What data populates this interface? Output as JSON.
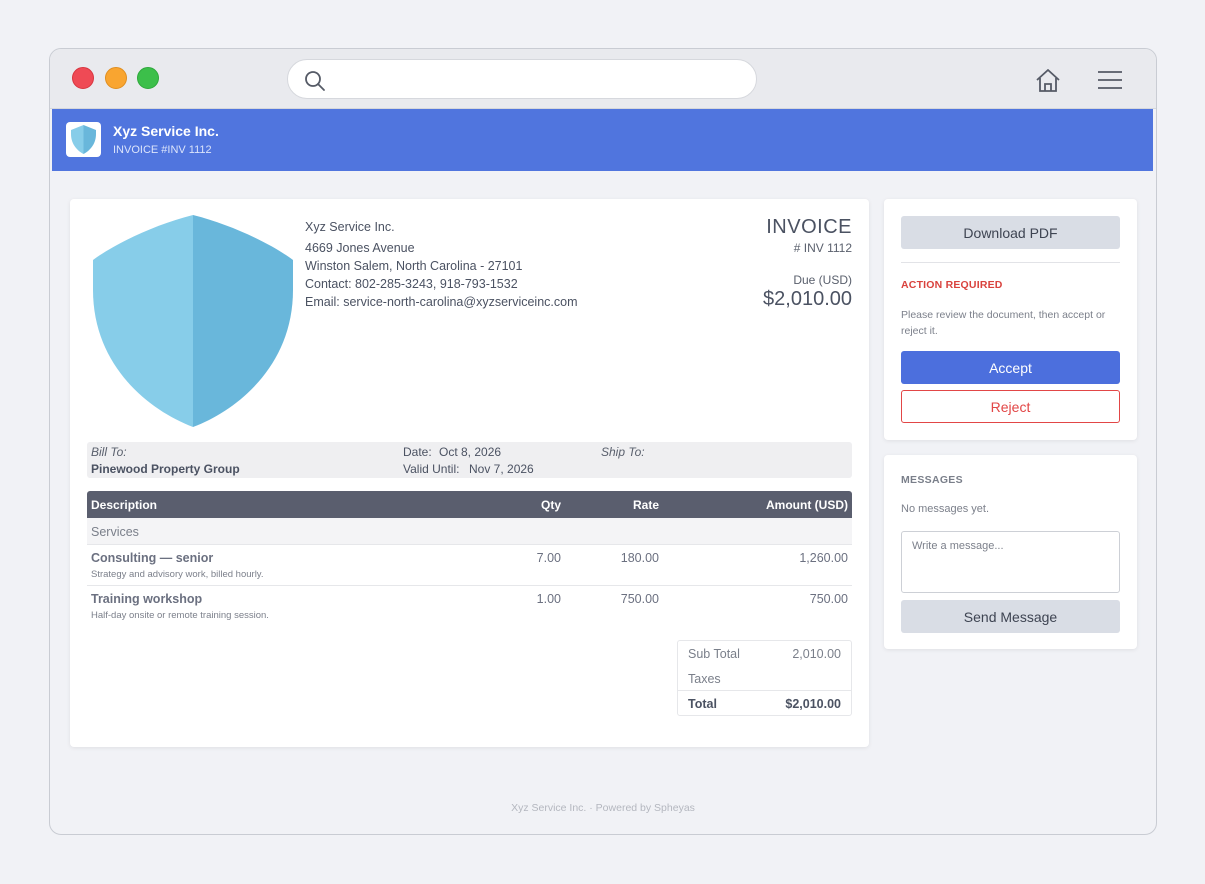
{
  "browser": {
    "url": "",
    "colors": {
      "close": "#ef4a55",
      "minimize": "#f9a530",
      "maximize": "#3cbf4a"
    }
  },
  "brand": {
    "name": "Xyz Service Inc.",
    "subtitle": "INVOICE #INV 1112",
    "color": "#5075de"
  },
  "invoice": {
    "company": {
      "name": "Xyz Service Inc.",
      "street": "4669 Jones Avenue",
      "city": "Winston Salem, North Carolina - 27101",
      "contact": "Contact: 802-285-3243, 918-793-1532",
      "email": "Email: service-north-carolina@xyzserviceinc.com"
    },
    "title": "INVOICE",
    "number": "# INV 1112",
    "due_label": "Due (USD)",
    "due_amount": "$2,010.00",
    "bill_to_label": "Bill To:",
    "bill_to": "Pinewood Property Group",
    "date_label": "Date:",
    "date": "Oct 8, 2026",
    "valid_until_label": "Valid Until:",
    "valid_until": "Nov 7, 2026",
    "ship_to_label": "Ship To:",
    "columns": {
      "description": "Description",
      "qty": "Qty",
      "rate": "Rate",
      "amount": "Amount (USD)"
    },
    "group": "Services",
    "items": [
      {
        "name": "Consulting — senior",
        "desc": "Strategy and advisory work, billed hourly.",
        "qty": "7.00",
        "rate": "180.00",
        "amount": "1,260.00"
      },
      {
        "name": "Training workshop",
        "desc": "Half-day onsite or remote training session.",
        "qty": "1.00",
        "rate": "750.00",
        "amount": "750.00"
      }
    ],
    "totals": {
      "subtotal_label": "Sub Total",
      "subtotal": "2,010.00",
      "taxes_label": "Taxes",
      "taxes": "",
      "total_label": "Total",
      "total": "$2,010.00"
    }
  },
  "actions": {
    "download": "Download PDF",
    "required_label": "ACTION REQUIRED",
    "required_msg": "Please review the document, then accept or reject it.",
    "accept": "Accept",
    "reject": "Reject",
    "accent": "#4c6fdd",
    "danger": "#e24646"
  },
  "messages": {
    "heading": "MESSAGES",
    "empty": "No messages yet.",
    "placeholder": "Write a message...",
    "send": "Send Message"
  },
  "footer": "Xyz Service Inc. · Powered by Spheyas"
}
